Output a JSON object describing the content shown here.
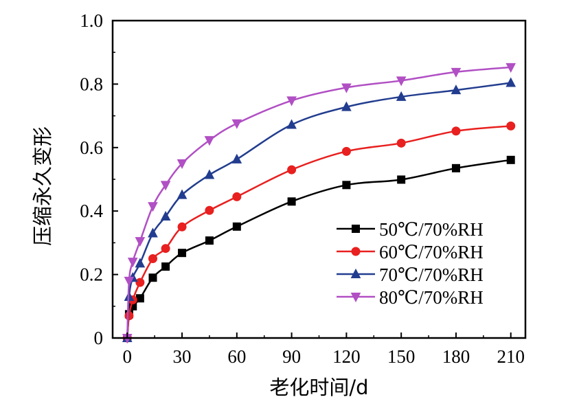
{
  "chart_data": {
    "type": "line",
    "xlabel": "老化时间/d",
    "ylabel": "压缩永久变形",
    "xlim": [
      -8,
      218
    ],
    "ylim": [
      0,
      1.0
    ],
    "xticks": [
      0,
      30,
      60,
      90,
      120,
      150,
      180,
      210
    ],
    "xtick_labels": [
      "0",
      "30",
      "60",
      "90",
      "120",
      "150",
      "180",
      "210"
    ],
    "yticks": [
      0,
      0.2,
      0.4,
      0.6,
      0.8,
      1.0
    ],
    "ytick_labels": [
      "0",
      "0.2",
      "0.4",
      "0.6",
      "0.8",
      "1.0"
    ],
    "grid": false,
    "legend_position": "bottom-right",
    "x": [
      0,
      1,
      3,
      7,
      14,
      21,
      30,
      45,
      60,
      90,
      120,
      150,
      180,
      210
    ],
    "series": [
      {
        "name": "50℃/70%RH",
        "marker": "square",
        "color": "#000000",
        "values": [
          0,
          0.075,
          0.1,
          0.125,
          0.19,
          0.225,
          0.268,
          0.307,
          0.351,
          0.43,
          0.482,
          0.499,
          0.535,
          0.561
        ]
      },
      {
        "name": "60℃/70%RH",
        "marker": "circle",
        "color": "#e8201f",
        "values": [
          0,
          0.07,
          0.12,
          0.175,
          0.25,
          0.282,
          0.35,
          0.402,
          0.445,
          0.53,
          0.588,
          0.614,
          0.652,
          0.668
        ]
      },
      {
        "name": "70℃/70%RH",
        "marker": "triangle-up",
        "color": "#223d8f",
        "values": [
          0,
          0.13,
          0.19,
          0.235,
          0.33,
          0.383,
          0.451,
          0.514,
          0.563,
          0.672,
          0.728,
          0.76,
          0.781,
          0.804
        ]
      },
      {
        "name": "80℃/70%RH",
        "marker": "triangle-down",
        "color": "#b14fc4",
        "values": [
          0,
          0.18,
          0.24,
          0.305,
          0.415,
          0.482,
          0.55,
          0.623,
          0.676,
          0.748,
          0.789,
          0.811,
          0.838,
          0.853
        ]
      }
    ]
  }
}
